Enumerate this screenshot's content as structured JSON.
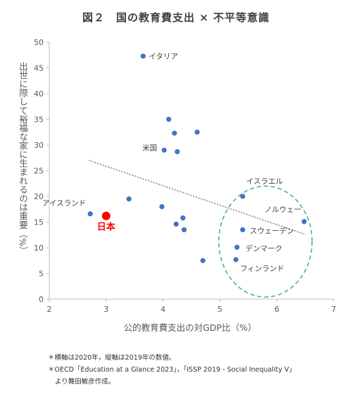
{
  "chart_data": {
    "type": "scatter",
    "title": "図２　国の教育費支出 × 不平等意識",
    "xlabel": "公的教育費支出の対GDP比（%）",
    "ylabel": "出世に際して裕福な家に生まれるのは重要（%）",
    "xlim": [
      2,
      7
    ],
    "ylim": [
      0,
      50
    ],
    "xticks": [
      "2",
      "3",
      "4",
      "5",
      "6",
      "7"
    ],
    "yticks": [
      "0",
      "5",
      "10",
      "15",
      "20",
      "25",
      "30",
      "35",
      "40",
      "45",
      "50"
    ],
    "grid": false,
    "points": [
      {
        "x": 3.65,
        "y": 47.3,
        "label": "イタリア"
      },
      {
        "x": 4.1,
        "y": 35.0,
        "label": ""
      },
      {
        "x": 4.6,
        "y": 32.5,
        "label": ""
      },
      {
        "x": 4.2,
        "y": 32.3,
        "label": ""
      },
      {
        "x": 4.02,
        "y": 29.0,
        "label": "米国"
      },
      {
        "x": 4.25,
        "y": 28.7,
        "label": ""
      },
      {
        "x": 3.4,
        "y": 19.5,
        "label": ""
      },
      {
        "x": 3.98,
        "y": 18.0,
        "label": ""
      },
      {
        "x": 2.72,
        "y": 16.6,
        "label": "アイスランド"
      },
      {
        "x": 4.35,
        "y": 15.8,
        "label": ""
      },
      {
        "x": 4.23,
        "y": 14.6,
        "label": ""
      },
      {
        "x": 4.37,
        "y": 13.5,
        "label": ""
      },
      {
        "x": 4.7,
        "y": 7.5,
        "label": ""
      },
      {
        "x": 5.4,
        "y": 20.0,
        "label": "イスラエル"
      },
      {
        "x": 6.48,
        "y": 15.1,
        "label": "ノルウェー"
      },
      {
        "x": 5.4,
        "y": 13.5,
        "label": "スウェーデン"
      },
      {
        "x": 5.3,
        "y": 10.1,
        "label": "デンマーク"
      },
      {
        "x": 5.28,
        "y": 7.7,
        "label": "フィンランド"
      }
    ],
    "highlight": {
      "x": 3.0,
      "y": 16.2,
      "label": "日本",
      "color": "#ff0000"
    },
    "trendline": {
      "style": "dotted",
      "x": [
        2.7,
        6.5
      ],
      "y": [
        27.0,
        12.6
      ]
    },
    "marker_color": "#4472c4",
    "ellipse": {
      "style": "dashed",
      "color": "#3cb371",
      "cx": 5.8,
      "cy": 11.2,
      "rx": 0.82,
      "ry": 10.8
    },
    "notes": [
      "＊横軸は2020年，縦軸は2019年の数値。",
      "＊OECD「Education at a Glance 2023」，「ISSP 2019 - Social Inequality V」",
      "より舞田敏彦作成。"
    ]
  }
}
